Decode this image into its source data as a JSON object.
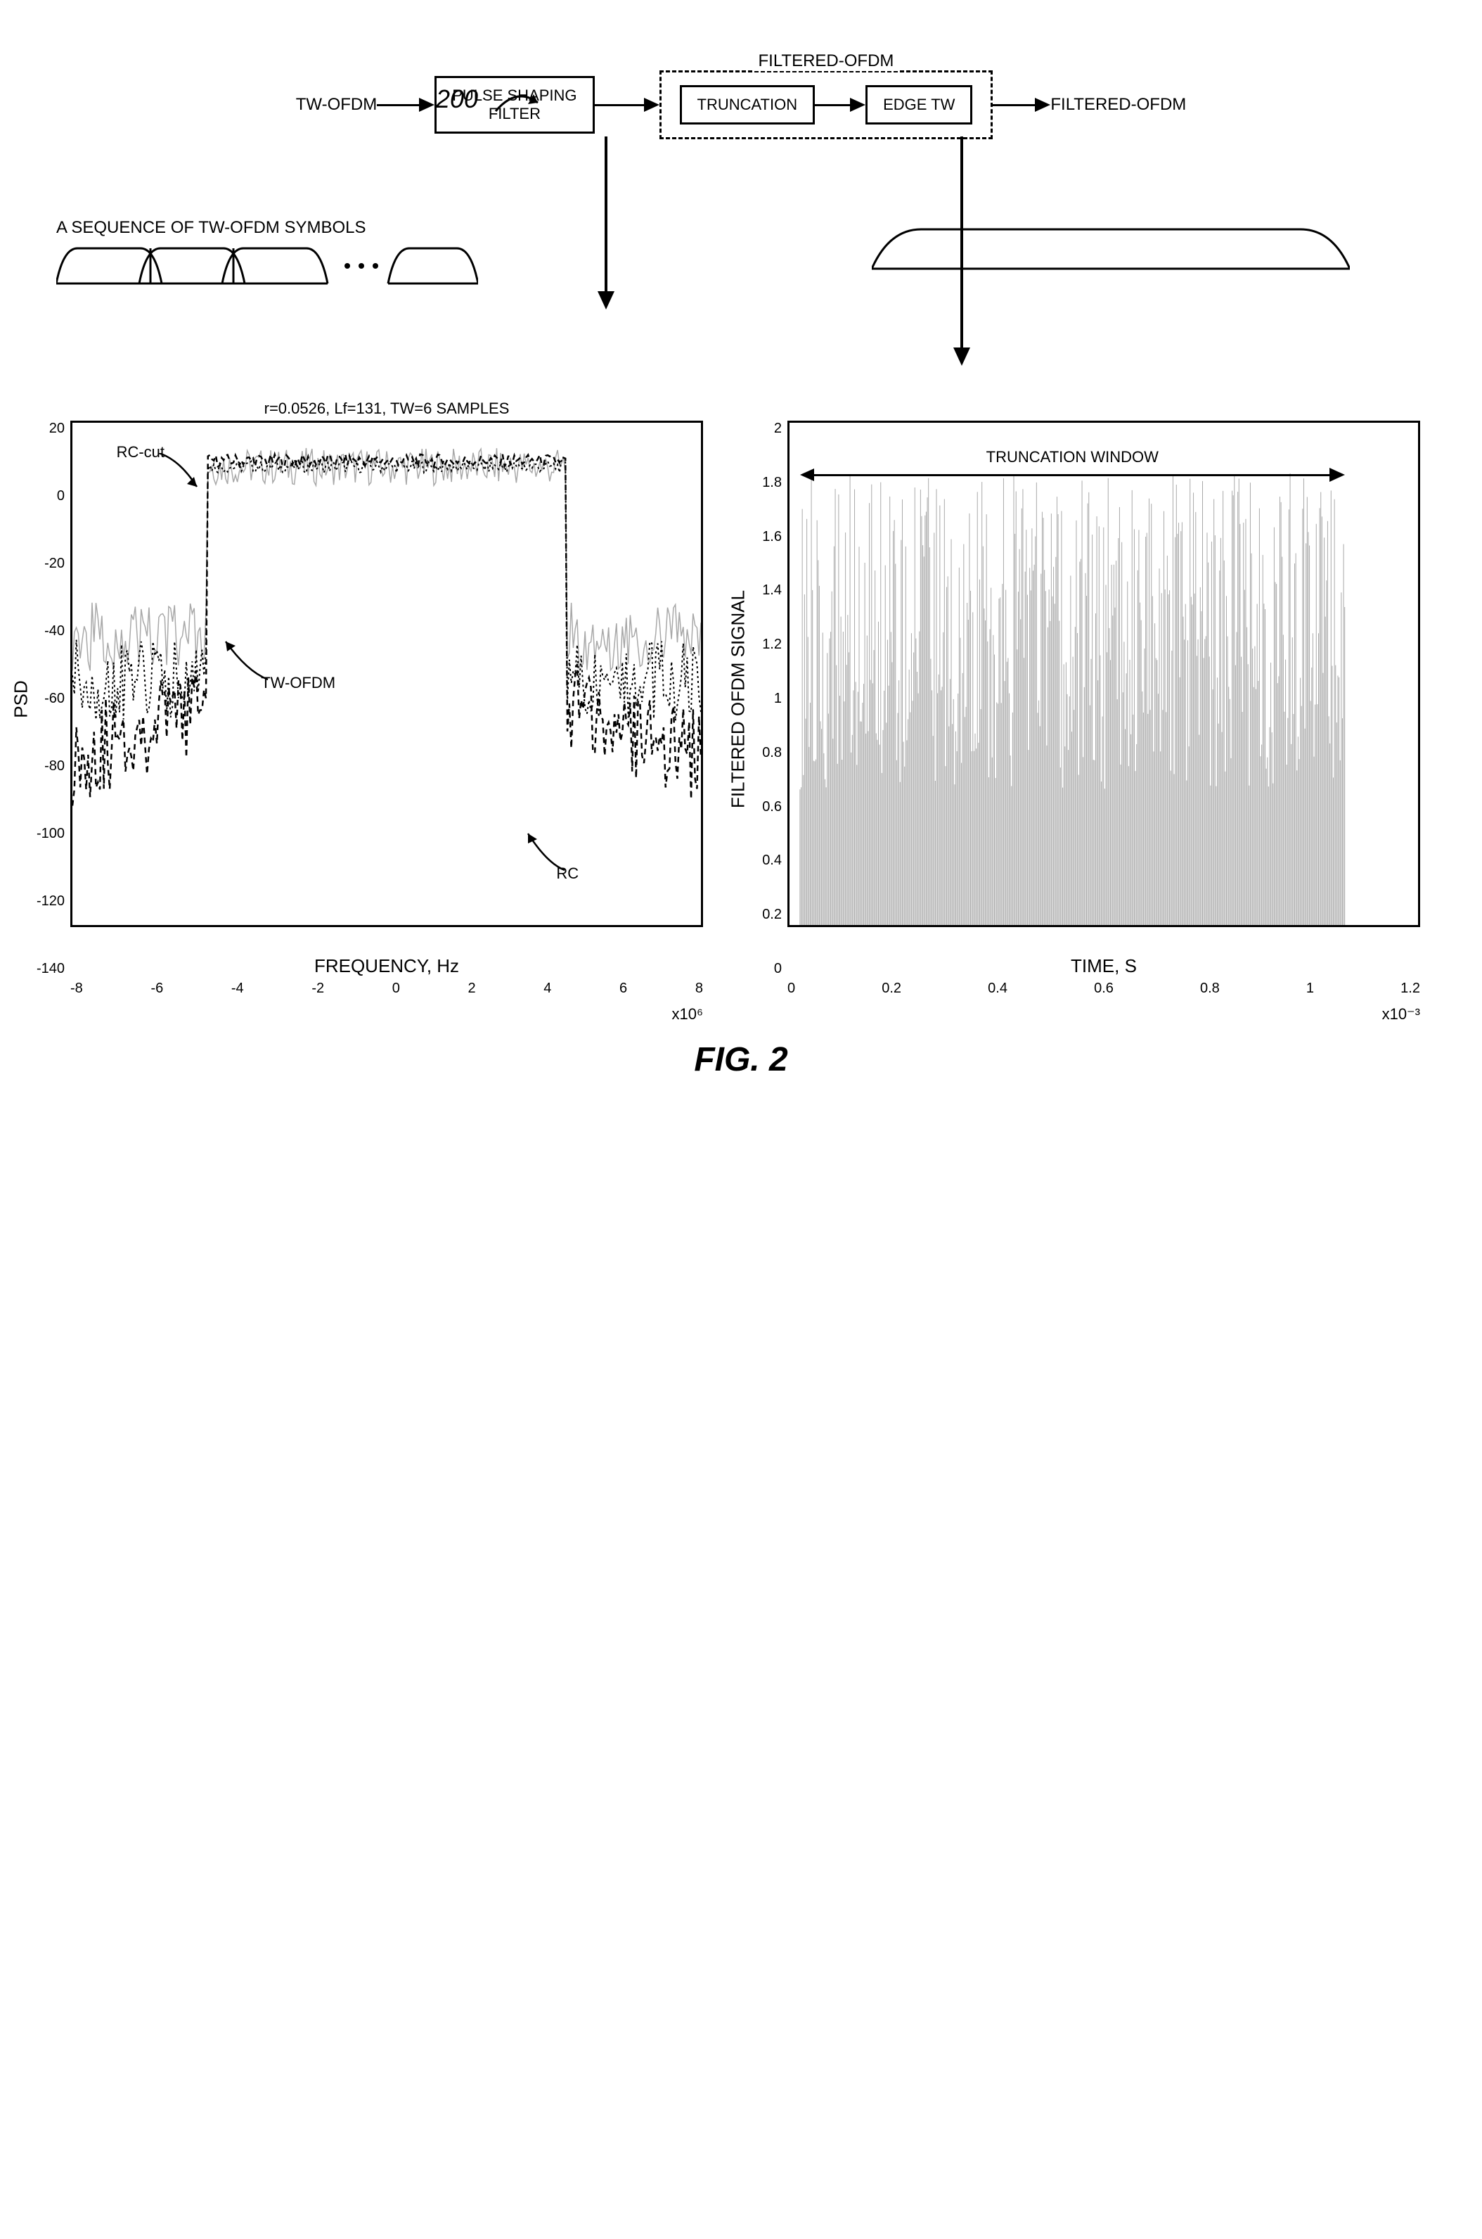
{
  "ref_number": "200",
  "figure_caption": "FIG. 2",
  "flow": {
    "input_label": "TW-OFDM",
    "pulse_box": "PULSE SHAPING\nFILTER",
    "group_title": "FILTERED-OFDM",
    "trunc_box": "TRUNCATION",
    "edge_box": "EDGE TW",
    "output_label": "FILTERED-OFDM"
  },
  "tw_sequence_title": "A SEQUENCE OF TW-OFDM SYMBOLS",
  "left_chart": {
    "type": "line",
    "title": "r=0.0526, Lf=131, TW=6 SAMPLES",
    "ylabel": "PSD",
    "xlabel": "FREQUENCY, Hz",
    "xscale_label": "x10⁶",
    "xlim": [
      -8,
      8
    ],
    "ylim": [
      -140,
      20
    ],
    "xticks": [
      "-8",
      "-6",
      "-4",
      "-2",
      "0",
      "2",
      "4",
      "6",
      "8"
    ],
    "yticks": [
      "20",
      "0",
      "-20",
      "-40",
      "-60",
      "-80",
      "-100",
      "-120",
      "-140"
    ],
    "passband_left_x": -4.6,
    "passband_right_x": 4.6,
    "passband_level": 6,
    "stopband_level_twofdm": -48,
    "stopband_level_rc": -70,
    "stopband_level_rccut": -62,
    "series": {
      "tw_ofdm": {
        "label": "TW-OFDM",
        "color": "#a8a8a8",
        "dash": "none",
        "annot_xy": [
          22,
          53
        ]
      },
      "rc": {
        "label": "RC",
        "color": "#000000",
        "dash": "8,6",
        "annot_xy": [
          74,
          91
        ]
      },
      "rc_cut": {
        "label": "RC-cut",
        "color": "#000000",
        "dash": "3,4",
        "annot_xy": [
          6,
          8
        ]
      }
    }
  },
  "right_chart": {
    "type": "signal",
    "ylabel": "FILTERED OFDM SIGNAL",
    "xlabel": "TIME, S",
    "xscale_label": "x10⁻³",
    "xlim": [
      0,
      1.2
    ],
    "ylim": [
      0,
      2
    ],
    "xticks": [
      "0",
      "0.2",
      "0.4",
      "0.6",
      "0.8",
      "1",
      "1.2"
    ],
    "yticks": [
      "2",
      "1.8",
      "1.6",
      "1.4",
      "1.2",
      "1",
      "0.8",
      "0.6",
      "0.4",
      "0.2",
      "0"
    ],
    "signal_start_x": 0.02,
    "signal_end_x": 1.06,
    "signal_max_amp": 1.8,
    "signal_color": "#a8a8a8",
    "trunc_window_label": "TRUNCATION WINDOW"
  }
}
